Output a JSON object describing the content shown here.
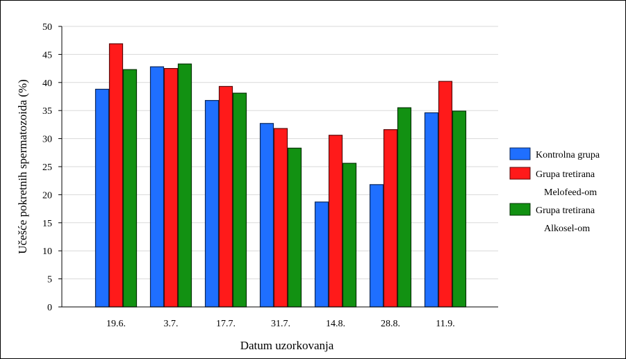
{
  "chart_data": {
    "type": "bar",
    "title": "",
    "xlabel": "Datum uzorkovanja",
    "ylabel": "Učešće pokretnih spermatozoida (%)",
    "ylim": [
      0,
      50
    ],
    "yticks": [
      0,
      5,
      10,
      15,
      20,
      25,
      30,
      35,
      40,
      45,
      50
    ],
    "grid": true,
    "legend_position": "right",
    "categories": [
      "19.6.",
      "3.7.",
      "17.7.",
      "31.7.",
      "14.8.",
      "28.8.",
      "11.9."
    ],
    "series": [
      {
        "name": "Kontrolna grupa",
        "color": "#1f6fff",
        "values": [
          38.8,
          42.8,
          36.8,
          32.7,
          18.7,
          21.8,
          34.6
        ]
      },
      {
        "name": "Grupa tretirana Melofeed-om",
        "legend_lines": [
          "Grupa tretirana",
          "Melofeed-om"
        ],
        "color": "#ff1a1a",
        "values": [
          46.9,
          42.5,
          39.3,
          31.8,
          30.6,
          31.6,
          40.2
        ]
      },
      {
        "name": "Grupa tretirana Alkosel-om",
        "legend_lines": [
          "Grupa tretirana",
          "Alkosel-om"
        ],
        "color": "#129112",
        "values": [
          42.3,
          43.3,
          38.1,
          28.3,
          25.6,
          35.5,
          34.9
        ]
      }
    ]
  }
}
